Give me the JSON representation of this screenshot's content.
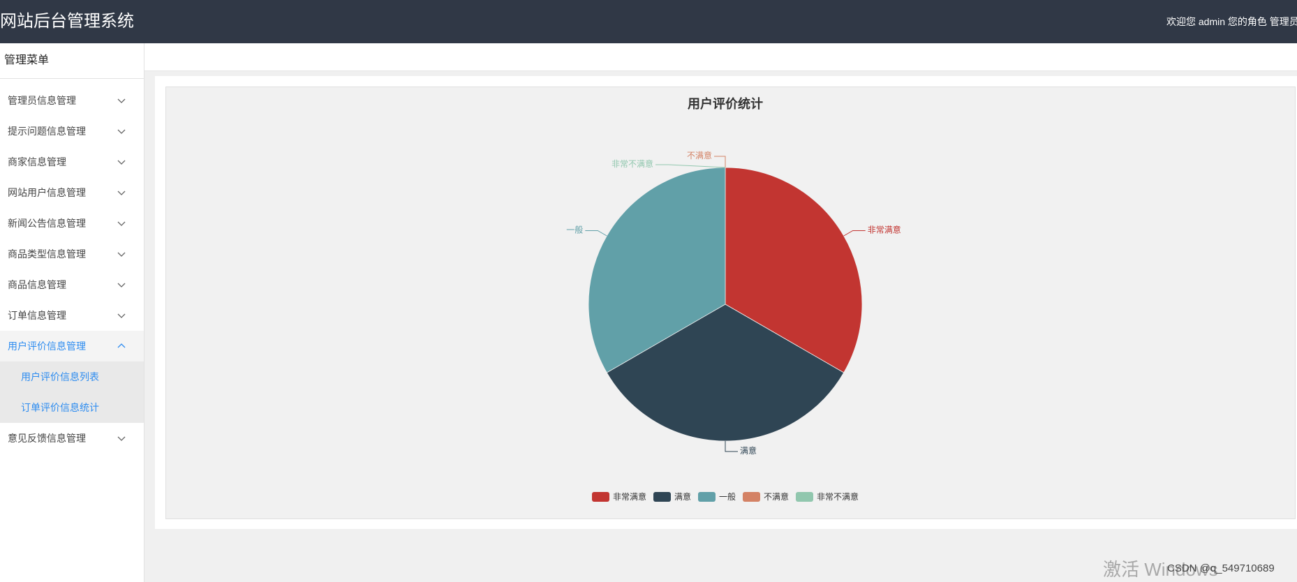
{
  "header": {
    "title": "网站后台管理系统",
    "welcome": "欢迎您 admin 您的角色 管理员"
  },
  "sidebar": {
    "title": "管理菜单",
    "items": [
      {
        "label": "管理员信息管理",
        "expanded": false
      },
      {
        "label": "提示问题信息管理",
        "expanded": false
      },
      {
        "label": "商家信息管理",
        "expanded": false
      },
      {
        "label": "网站用户信息管理",
        "expanded": false
      },
      {
        "label": "新闻公告信息管理",
        "expanded": false
      },
      {
        "label": "商品类型信息管理",
        "expanded": false
      },
      {
        "label": "商品信息管理",
        "expanded": false
      },
      {
        "label": "订单信息管理",
        "expanded": false
      },
      {
        "label": "用户评价信息管理",
        "expanded": true,
        "children": [
          {
            "label": "用户评价信息列表"
          },
          {
            "label": "订单评价信息统计"
          }
        ]
      },
      {
        "label": "意见反馈信息管理",
        "expanded": false
      }
    ]
  },
  "theme": {
    "header_bg": "#303846",
    "accent": "#2d8cf0",
    "panel_bg": "#f1f1f1"
  },
  "chart_data": {
    "type": "pie",
    "title": "用户评价统计",
    "categories": [
      "非常满意",
      "满意",
      "一般",
      "不满意",
      "非常不满意"
    ],
    "values": [
      1,
      1,
      1,
      0,
      0
    ],
    "colors": [
      "#c23531",
      "#2f4554",
      "#61a0a8",
      "#d48265",
      "#91c7ae"
    ],
    "legend": "bottom-center"
  },
  "watermark": {
    "activate_text": "激活 Windows",
    "csdn": "CSDN @q_549710689"
  }
}
